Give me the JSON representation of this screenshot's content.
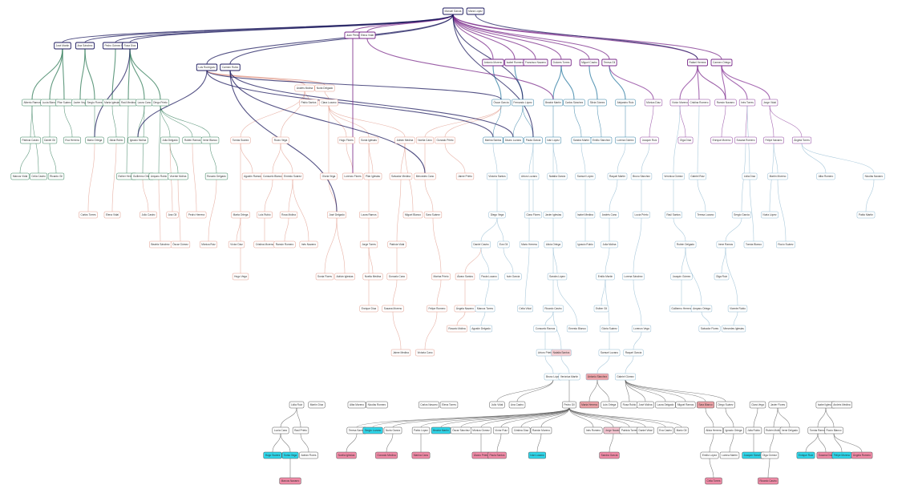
{
  "nodes": [
    {
      "label": "Manuel García"
    },
    {
      "label": "María López"
    },
    {
      "label": "Juan Pérez"
    },
    {
      "label": "Elena Vidal"
    },
    {
      "label": "José Martín"
    },
    {
      "label": "Ana Sánchez"
    },
    {
      "label": "Pedro Gómez Ruiz"
    },
    {
      "label": "Rosa Díaz"
    },
    {
      "label": "Antonio Moreno"
    },
    {
      "label": "Isabel Romero"
    },
    {
      "label": "Francisco Navarro"
    },
    {
      "label": "Dolores Torres"
    },
    {
      "label": "Miguel Castro"
    },
    {
      "label": "Teresa Gil"
    },
    {
      "label": "Rafael Herrera"
    },
    {
      "label": "Carmen Ortega"
    },
    {
      "label": "Luis Rodríguez"
    },
    {
      "label": "Carmen Rubio"
    },
    {
      "label": "Andrés Molina"
    },
    {
      "label": "Nuria Delgado"
    },
    {
      "label": "Alberto Ramos"
    },
    {
      "label": "Lucía Blanco"
    },
    {
      "label": "Pilar Suárez"
    },
    {
      "label": "Javier Vega"
    },
    {
      "label": "Sergio Flores"
    },
    {
      "label": "Marta Iglesias"
    },
    {
      "label": "Raúl Medina"
    },
    {
      "label": "Laura Cano"
    },
    {
      "label": "Diego Prieto"
    },
    {
      "label": "Pablo Santos"
    },
    {
      "label": "Clara Lozano"
    },
    {
      "label": "Óscar García"
    },
    {
      "label": "Fernando López"
    },
    {
      "label": "Beatriz Martín"
    },
    {
      "label": "Carlos Sánchez"
    },
    {
      "label": "Silvia Gómez"
    },
    {
      "label": "Alejandro Ruiz"
    },
    {
      "label": "Mónica Díaz"
    },
    {
      "label": "Víctor Moreno"
    },
    {
      "label": "Cristina Romero"
    },
    {
      "label": "Ramón Navarro"
    },
    {
      "label": "Inés Torres"
    },
    {
      "label": "Jorge Vidal"
    },
    {
      "label": "Patricia Castro"
    },
    {
      "label": "Daniel Gil"
    },
    {
      "label": "Eva Herrera"
    },
    {
      "label": "Mario Ortega"
    },
    {
      "label": "Alicia Rubio"
    },
    {
      "label": "Ignacio Molina"
    },
    {
      "label": "Julia Delgado"
    },
    {
      "label": "Rubén Ramos"
    },
    {
      "label": "Irene Blanco"
    },
    {
      "label": "Tomás Suárez"
    },
    {
      "label": "Rocío Vega"
    },
    {
      "label": "Hugo Flores"
    },
    {
      "label": "Sonia Iglesias"
    },
    {
      "label": "Adrián Medina"
    },
    {
      "label": "Noelia Cano"
    },
    {
      "label": "Gonzalo Prieto"
    },
    {
      "label": "Marina Santos"
    },
    {
      "label": "Álvaro Lozano"
    },
    {
      "label": "Paula García"
    },
    {
      "label": "Iván López"
    },
    {
      "label": "Sandra Martín"
    },
    {
      "label": "Emilio Sánchez"
    },
    {
      "label": "Lorena Gómez"
    },
    {
      "label": "Joaquín Ruiz"
    },
    {
      "label": "Olga Díaz"
    },
    {
      "label": "Enrique Moreno"
    },
    {
      "label": "Susana Romero"
    },
    {
      "label": "Felipe Navarro"
    },
    {
      "label": "Ángela Torres"
    },
    {
      "label": "Marcos Vidal"
    },
    {
      "label": "Celia Castro"
    },
    {
      "label": "Ricardo Gil"
    },
    {
      "label": "Esther Herrera"
    },
    {
      "label": "Guillermo Ortega"
    },
    {
      "label": "Amparo Rubio"
    },
    {
      "label": "Vicente Molina"
    },
    {
      "label": "Rosario Delgado"
    },
    {
      "label": "Agustín Ramos"
    },
    {
      "label": "Consuelo Blanco"
    },
    {
      "label": "Ernesto Suárez"
    },
    {
      "label": "Gloria Vega"
    },
    {
      "label": "Lorenzo Flores"
    },
    {
      "label": "Pilar Iglesias"
    },
    {
      "label": "Salvador Medina"
    },
    {
      "label": "Mercedes Cano"
    },
    {
      "label": "Jaime Prieto"
    },
    {
      "label": "Victoria Santos"
    },
    {
      "label": "Arturo Lozano"
    },
    {
      "label": "Natalia García"
    },
    {
      "label": "Samuel López"
    },
    {
      "label": "Raquel Martín"
    },
    {
      "label": "Bruno Sánchez"
    },
    {
      "label": "Verónica Gómez"
    },
    {
      "label": "Gabriel Ruiz"
    },
    {
      "label": "Lidia Díaz"
    },
    {
      "label": "Martín Moreno"
    },
    {
      "label": "Alba Romero"
    },
    {
      "label": "Nicolás Navarro"
    },
    {
      "label": "Carlos Torres"
    },
    {
      "label": "Elena Vidal"
    },
    {
      "label": "Julio Castro"
    },
    {
      "label": "Ana Gil"
    },
    {
      "label": "Pedro Herrera"
    },
    {
      "label": "Marta Ortega"
    },
    {
      "label": "Luis Rubio"
    },
    {
      "label": "Rosa Molina"
    },
    {
      "label": "José Delgado"
    },
    {
      "label": "Laura Ramos"
    },
    {
      "label": "Miguel Blanco"
    },
    {
      "label": "Sara Suárez"
    },
    {
      "label": "Diego Vega"
    },
    {
      "label": "Clara Flores"
    },
    {
      "label": "Javier Iglesias"
    },
    {
      "label": "Isabel Medina"
    },
    {
      "label": "Andrés Cano"
    },
    {
      "label": "Lucía Prieto"
    },
    {
      "label": "Raúl Santos"
    },
    {
      "label": "Teresa Lozano"
    },
    {
      "label": "Sergio García"
    },
    {
      "label": "Nuria López"
    },
    {
      "label": "Pablo Martín"
    },
    {
      "label": "Beatriz Sánchez"
    },
    {
      "label": "Óscar Gómez"
    },
    {
      "label": "Mónica Ruiz"
    },
    {
      "label": "Víctor Díaz"
    },
    {
      "label": "Cristina Moreno"
    },
    {
      "label": "Ramón Romero"
    },
    {
      "label": "Inés Navarro"
    },
    {
      "label": "Jorge Torres"
    },
    {
      "label": "Patricia Vidal"
    },
    {
      "label": "Daniel Castro"
    },
    {
      "label": "Eva Gil"
    },
    {
      "label": "Mario Herrera"
    },
    {
      "label": "Alicia Ortega"
    },
    {
      "label": "Ignacio Rubio"
    },
    {
      "label": "Julia Molina"
    },
    {
      "label": "Rubén Delgado"
    },
    {
      "label": "Irene Ramos"
    },
    {
      "label": "Tomás Blanco"
    },
    {
      "label": "Rocío Suárez"
    },
    {
      "label": "Hugo Vega"
    },
    {
      "label": "Sonia Flores"
    },
    {
      "label": "Adrián Iglesias"
    },
    {
      "label": "Noelia Medina"
    },
    {
      "label": "Gonzalo Cano"
    },
    {
      "label": "Marina Prieto"
    },
    {
      "label": "Álvaro Santos"
    },
    {
      "label": "Paula Lozano"
    },
    {
      "label": "Iván García"
    },
    {
      "label": "Sandra López"
    },
    {
      "label": "Emilio Martín"
    },
    {
      "label": "Lorena Sánchez"
    },
    {
      "label": "Joaquín Gómez"
    },
    {
      "label": "Olga Ruiz"
    },
    {
      "label": "Enrique Díaz"
    },
    {
      "label": "Susana Moreno"
    },
    {
      "label": "Felipe Romero"
    },
    {
      "label": "Ángela Navarro"
    },
    {
      "label": "Marcos Torres"
    },
    {
      "label": "Celia Vidal"
    },
    {
      "label": "Ricardo Castro"
    },
    {
      "label": "Esther Gil"
    },
    {
      "label": "Guillermo Herrera"
    },
    {
      "label": "Amparo Ortega"
    },
    {
      "label": "Vicente Rubio"
    },
    {
      "label": "Rosario Molina"
    },
    {
      "label": "Agustín Delgado"
    },
    {
      "label": "Consuelo Ramos"
    },
    {
      "label": "Ernesto Blanco"
    },
    {
      "label": "Gloria Suárez"
    },
    {
      "label": "Lorenzo Vega"
    },
    {
      "label": "Salvador Flores"
    },
    {
      "label": "Mercedes Iglesias"
    },
    {
      "label": "Jaime Medina"
    },
    {
      "label": "Victoria Cano"
    },
    {
      "label": "Arturo Prieto"
    },
    {
      "label": "Natalia Santos"
    },
    {
      "label": "Samuel Lozano"
    },
    {
      "label": "Raquel García"
    },
    {
      "label": "Bruno López"
    },
    {
      "label": "Verónica Martín"
    },
    {
      "label": "Antonio Sánchez"
    },
    {
      "label": "Gabriel Gómez"
    },
    {
      "label": "Lidia Ruiz"
    },
    {
      "label": "Martín Díaz"
    },
    {
      "label": "Alba Moreno"
    },
    {
      "label": "Nicolás Romero"
    },
    {
      "label": "Carlos Navarro"
    },
    {
      "label": "Elena Torres"
    },
    {
      "label": "Julio Vidal"
    },
    {
      "label": "Ana Castro"
    },
    {
      "label": "Pedro Gil"
    },
    {
      "label": "Marta Herrera"
    },
    {
      "label": "Luis Ortega"
    },
    {
      "label": "Rosa Rubio"
    },
    {
      "label": "José Molina"
    },
    {
      "label": "Laura Delgado"
    },
    {
      "label": "Miguel Ramos"
    },
    {
      "label": "Sara Blanco"
    },
    {
      "label": "Diego Suárez"
    },
    {
      "label": "Clara Vega"
    },
    {
      "label": "Javier Flores"
    },
    {
      "label": "Isabel Iglesias"
    },
    {
      "label": "Andrés Medina"
    },
    {
      "label": "Lucía Cano"
    },
    {
      "label": "Raúl Prieto"
    },
    {
      "label": "Teresa Santos"
    },
    {
      "label": "Sergio Lozano"
    },
    {
      "label": "Nuria García"
    },
    {
      "label": "Pablo López"
    },
    {
      "label": "Beatriz Martín"
    },
    {
      "label": "Óscar Sánchez"
    },
    {
      "label": "Mónica Gómez"
    },
    {
      "label": "Víctor Ruiz"
    },
    {
      "label": "Cristina Díaz"
    },
    {
      "label": "Ramón Moreno"
    },
    {
      "label": "Inés Romero"
    },
    {
      "label": "Jorge Navarro"
    },
    {
      "label": "Patricia Torres"
    },
    {
      "label": "Daniel Vidal"
    },
    {
      "label": "Eva Castro"
    },
    {
      "label": "Mario Gil"
    },
    {
      "label": "Alicia Herrera"
    },
    {
      "label": "Ignacio Ortega"
    },
    {
      "label": "Julia Rubio"
    },
    {
      "label": "Rubén Molina"
    },
    {
      "label": "Irene Delgado"
    },
    {
      "label": "Tomás Ramos"
    },
    {
      "label": "Rocío Blanco"
    },
    {
      "label": "Hugo Suárez"
    },
    {
      "label": "Sonia Vega"
    },
    {
      "label": "Adrián Flores"
    },
    {
      "label": "Noelia Iglesias"
    },
    {
      "label": "Gonzalo Medina"
    },
    {
      "label": "Marina Cano"
    },
    {
      "label": "Álvaro Prieto"
    },
    {
      "label": "Paula Santos"
    },
    {
      "label": "Iván Lozano"
    },
    {
      "label": "Sandra García"
    },
    {
      "label": "Emilio López"
    },
    {
      "label": "Lorena Martín"
    },
    {
      "label": "Joaquín Sánchez"
    },
    {
      "label": "Olga Gómez"
    },
    {
      "label": "Enrique Ruiz"
    },
    {
      "label": "Susana Díaz"
    },
    {
      "label": "Felipe Moreno"
    },
    {
      "label": "Ángela Romero"
    },
    {
      "label": "Marcos Navarro"
    },
    {
      "label": "Celia Torres"
    },
    {
      "label": "Ricardo Castro"
    }
  ]
}
